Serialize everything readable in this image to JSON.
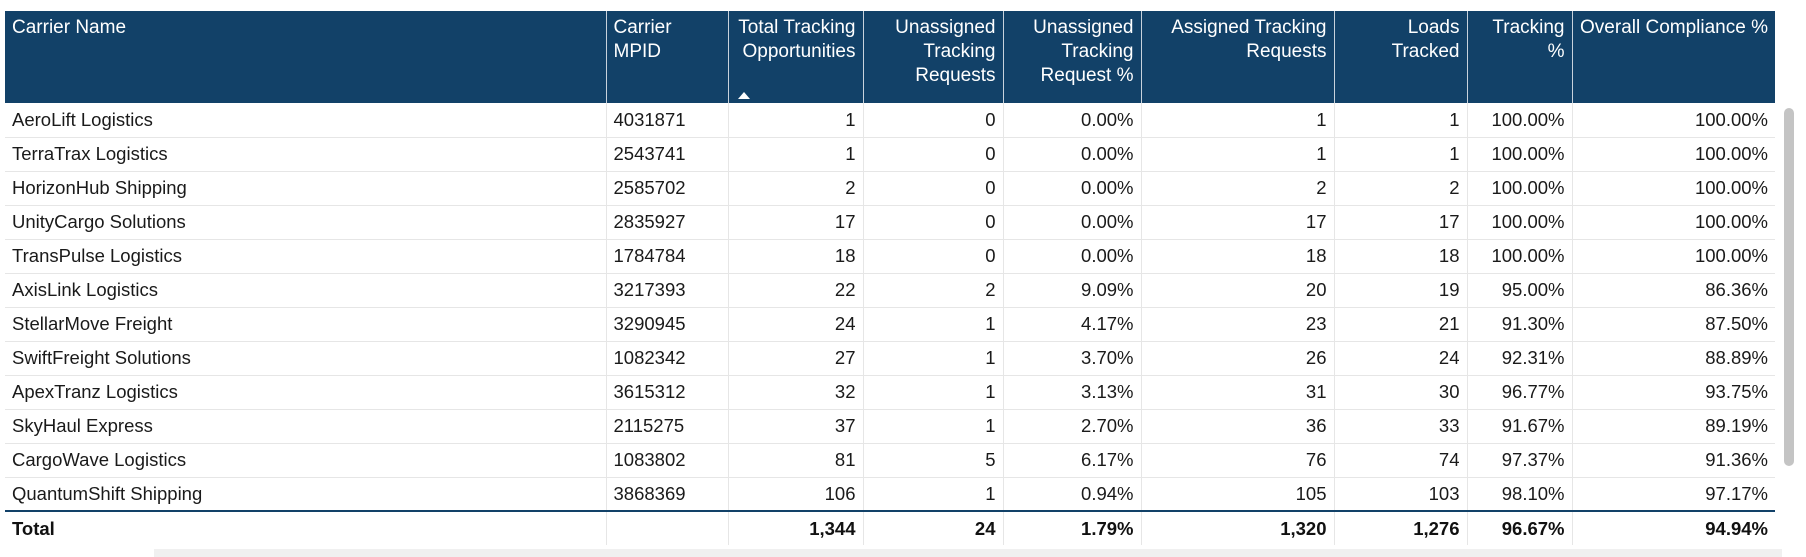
{
  "table": {
    "columns": [
      "Carrier Name",
      "Carrier MPID",
      "Total Tracking Opportunities",
      "Unassigned Tracking Requests",
      "Unassigned Tracking Request %",
      "Assigned Tracking Requests",
      "Loads Tracked",
      "Tracking %",
      "Overall Compliance %"
    ],
    "rows": [
      [
        "AeroLift Logistics",
        "4031871",
        "1",
        "0",
        "0.00%",
        "1",
        "1",
        "100.00%",
        "100.00%"
      ],
      [
        "TerraTrax Logistics",
        "2543741",
        "1",
        "0",
        "0.00%",
        "1",
        "1",
        "100.00%",
        "100.00%"
      ],
      [
        "HorizonHub Shipping",
        "2585702",
        "2",
        "0",
        "0.00%",
        "2",
        "2",
        "100.00%",
        "100.00%"
      ],
      [
        "UnityCargo Solutions",
        "2835927",
        "17",
        "0",
        "0.00%",
        "17",
        "17",
        "100.00%",
        "100.00%"
      ],
      [
        "TransPulse Logistics",
        "1784784",
        "18",
        "0",
        "0.00%",
        "18",
        "18",
        "100.00%",
        "100.00%"
      ],
      [
        "AxisLink Logistics",
        "3217393",
        "22",
        "2",
        "9.09%",
        "20",
        "19",
        "95.00%",
        "86.36%"
      ],
      [
        "StellarMove Freight",
        "3290945",
        "24",
        "1",
        "4.17%",
        "23",
        "21",
        "91.30%",
        "87.50%"
      ],
      [
        "SwiftFreight Solutions",
        "1082342",
        "27",
        "1",
        "3.70%",
        "26",
        "24",
        "92.31%",
        "88.89%"
      ],
      [
        "ApexTranz Logistics",
        "3615312",
        "32",
        "1",
        "3.13%",
        "31",
        "30",
        "96.77%",
        "93.75%"
      ],
      [
        "SkyHaul Express",
        "2115275",
        "37",
        "1",
        "2.70%",
        "36",
        "33",
        "91.67%",
        "89.19%"
      ],
      [
        "CargoWave Logistics",
        "1083802",
        "81",
        "5",
        "6.17%",
        "76",
        "74",
        "97.37%",
        "91.36%"
      ],
      [
        "QuantumShift Shipping",
        "3868369",
        "106",
        "1",
        "0.94%",
        "105",
        "103",
        "98.10%",
        "97.17%"
      ]
    ],
    "totals": [
      "Total",
      "",
      "1,344",
      "24",
      "1.79%",
      "1,320",
      "1,276",
      "96.67%",
      "94.94%"
    ],
    "sort_column": "Total Tracking Opportunities",
    "sort_direction": "ascending",
    "header_color": "#124168"
  }
}
